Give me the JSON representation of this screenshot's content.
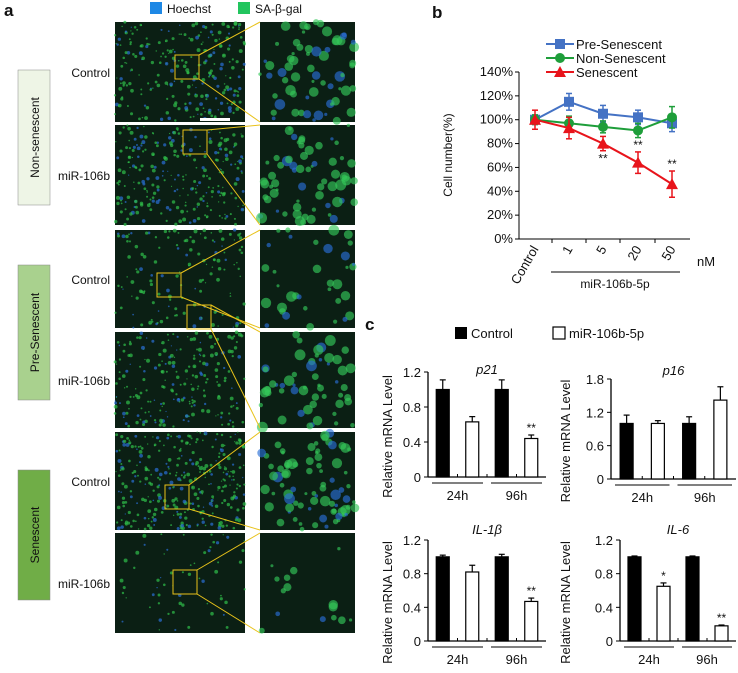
{
  "panel_a": {
    "letter": "a",
    "legend": [
      {
        "label": "Hoechst",
        "color": "#1e88e5"
      },
      {
        "label": "SA-β-gal",
        "color": "#22c55e"
      }
    ],
    "groups": [
      {
        "label": "Non-senescent",
        "color": "#eef5e6",
        "rows": [
          "Control",
          "miR-106b"
        ]
      },
      {
        "label": "Pre-Senescent",
        "color": "#a9d18e",
        "rows": [
          "Control",
          "miR-106b"
        ]
      },
      {
        "label": "Senescent",
        "color": "#70ad47",
        "rows": [
          "Control",
          "miR-106b"
        ]
      }
    ],
    "box_color": "#e8c21a"
  },
  "chart_data": [
    {
      "panel": "b",
      "type": "line",
      "categories": [
        "Control",
        "1",
        "5",
        "20",
        "50"
      ],
      "unit_label": "nM",
      "group_label": "miR-106b-5p",
      "ylabel": "Cell number(%)",
      "ylim": [
        0,
        140
      ],
      "yticks": [
        "0%",
        "20%",
        "40%",
        "60%",
        "80%",
        "100%",
        "120%",
        "140%"
      ],
      "legend_position": "top",
      "series": [
        {
          "name": "Pre-Senescent",
          "color": "#4472c4",
          "marker": "square",
          "values": [
            100,
            115,
            105,
            102,
            97
          ],
          "errors": [
            4,
            7,
            7,
            6,
            7
          ],
          "sig": [
            "",
            "",
            "",
            "",
            ""
          ]
        },
        {
          "name": "Non-Senescent",
          "color": "#1e9e3a",
          "marker": "circle",
          "values": [
            100,
            97,
            94,
            91,
            102
          ],
          "errors": [
            4,
            6,
            5,
            6,
            9
          ],
          "sig": [
            "",
            "",
            "",
            "",
            ""
          ]
        },
        {
          "name": "Senescent",
          "color": "#e8141b",
          "marker": "triangle",
          "values": [
            100,
            93,
            80,
            64,
            46
          ],
          "errors": [
            8,
            9,
            6,
            9,
            11
          ],
          "sig": [
            "",
            "",
            "**",
            "**",
            "**"
          ]
        }
      ]
    },
    {
      "panel": "c",
      "type": "bar",
      "legend": [
        {
          "name": "Control",
          "fill": "#000000"
        },
        {
          "name": "miR-106b-5p",
          "fill": "#ffffff"
        }
      ],
      "ylabel": "Relative mRNA Level",
      "groups": [
        "24h",
        "96h"
      ],
      "subplots": [
        {
          "title": "p21",
          "ylim": [
            0,
            1.2
          ],
          "yticks": [
            "0",
            "0.4",
            "0.8",
            "1.2"
          ],
          "values": [
            1.0,
            0.63,
            1.0,
            0.44
          ],
          "errors": [
            0.11,
            0.06,
            0.11,
            0.04
          ],
          "sig": [
            "",
            "",
            "",
            "**"
          ]
        },
        {
          "title": "p16",
          "ylim": [
            0,
            1.8
          ],
          "yticks": [
            "0",
            "0.6",
            "1.2",
            "1.8"
          ],
          "values": [
            1.0,
            1.0,
            1.0,
            1.42
          ],
          "errors": [
            0.15,
            0.05,
            0.12,
            0.24
          ],
          "sig": [
            "",
            "",
            "",
            ""
          ]
        },
        {
          "title": "IL-1β",
          "ylim": [
            0,
            1.2
          ],
          "yticks": [
            "0",
            "0.4",
            "0.8",
            "1.2"
          ],
          "values": [
            1.0,
            0.82,
            1.0,
            0.47
          ],
          "errors": [
            0.02,
            0.08,
            0.03,
            0.04
          ],
          "sig": [
            "",
            "",
            "",
            "**"
          ]
        },
        {
          "title": "IL-6",
          "ylim": [
            0,
            1.2
          ],
          "yticks": [
            "0",
            "0.4",
            "0.8",
            "1.2"
          ],
          "values": [
            1.0,
            0.65,
            1.0,
            0.18
          ],
          "errors": [
            0.01,
            0.04,
            0.01,
            0.01
          ],
          "sig": [
            "",
            "*",
            "",
            "**"
          ]
        }
      ]
    }
  ]
}
